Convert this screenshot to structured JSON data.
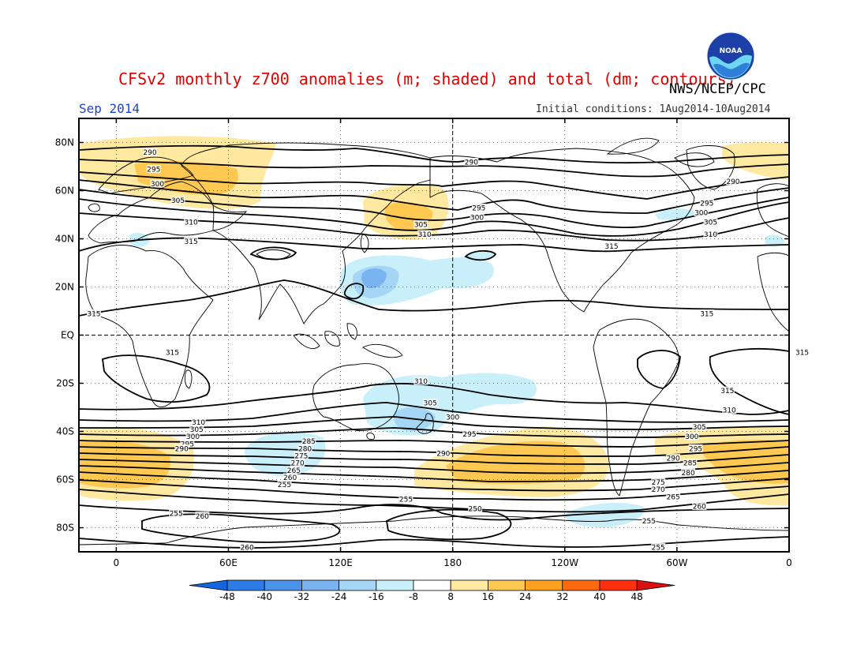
{
  "title": "CFSv2 monthly z700 anomalies (m; shaded) and total (dm; contours)",
  "agency": "NWS/NCEP/CPC",
  "logo_text": "NOAA",
  "month": "Sep 2014",
  "initial_conditions": "Initial conditions: 1Aug2014-10Aug2014",
  "lat_labels": [
    "80N",
    "60N",
    "40N",
    "20N",
    "EQ",
    "20S",
    "40S",
    "60S",
    "80S"
  ],
  "lat_values": [
    80,
    60,
    40,
    20,
    0,
    -20,
    -40,
    -60,
    -80
  ],
  "lon_labels": [
    "0",
    "60E",
    "120E",
    "180",
    "120W",
    "60W",
    "0"
  ],
  "lon_values": [
    0,
    60,
    120,
    180,
    240,
    300,
    360
  ],
  "colorbar": {
    "ticks": [
      "-48",
      "-40",
      "-32",
      "-24",
      "-16",
      "-8",
      "8",
      "16",
      "24",
      "32",
      "40",
      "48"
    ],
    "colors": [
      "#1565e0",
      "#2b7ce6",
      "#4b94ea",
      "#79b4f0",
      "#a6d6f6",
      "#c9f0fa",
      "#ffffff",
      "#ffe8a0",
      "#ffc850",
      "#ffa020",
      "#ff6a10",
      "#ff3010",
      "#d81010"
    ]
  },
  "colors": {
    "title": "#e00000",
    "month": "#1a44d6",
    "pos_light": "#ffe8a0",
    "pos_mid": "#ffc850",
    "neg_light": "#c9f0fa",
    "neg_mid": "#a6d6f6",
    "neg_strong": "#79b4f0"
  },
  "contour_labels": [
    {
      "text": "290",
      "lon": 18,
      "lat": 76
    },
    {
      "text": "295",
      "lon": 20,
      "lat": 69
    },
    {
      "text": "300",
      "lon": 22,
      "lat": 63
    },
    {
      "text": "305",
      "lon": 33,
      "lat": 56
    },
    {
      "text": "310",
      "lon": 40,
      "lat": 47
    },
    {
      "text": "315",
      "lon": 40,
      "lat": 39
    },
    {
      "text": "290",
      "lon": 190,
      "lat": 72
    },
    {
      "text": "295",
      "lon": 194,
      "lat": 53
    },
    {
      "text": "300",
      "lon": 193,
      "lat": 49
    },
    {
      "text": "305",
      "lon": 163,
      "lat": 46
    },
    {
      "text": "310",
      "lon": 165,
      "lat": 42
    },
    {
      "text": "290",
      "lon": 330,
      "lat": 64
    },
    {
      "text": "295",
      "lon": 316,
      "lat": 55
    },
    {
      "text": "300",
      "lon": 313,
      "lat": 51
    },
    {
      "text": "305",
      "lon": 318,
      "lat": 47
    },
    {
      "text": "310",
      "lon": 318,
      "lat": 42
    },
    {
      "text": "315",
      "lon": 265,
      "lat": 37
    },
    {
      "text": "315",
      "lon": -12,
      "lat": 9
    },
    {
      "text": "315",
      "lon": 316,
      "lat": 9
    },
    {
      "text": "315",
      "lon": 30,
      "lat": -7
    },
    {
      "text": "315",
      "lon": 367,
      "lat": -7
    },
    {
      "text": "315",
      "lon": 327,
      "lat": -23
    },
    {
      "text": "310",
      "lon": 163,
      "lat": -19
    },
    {
      "text": "310",
      "lon": 328,
      "lat": -31
    },
    {
      "text": "305",
      "lon": 168,
      "lat": -28
    },
    {
      "text": "300",
      "lon": 180,
      "lat": -34
    },
    {
      "text": "295",
      "lon": 189,
      "lat": -41
    },
    {
      "text": "310",
      "lon": 44,
      "lat": -36
    },
    {
      "text": "305",
      "lon": 43,
      "lat": -39
    },
    {
      "text": "300",
      "lon": 41,
      "lat": -42
    },
    {
      "text": "295",
      "lon": 38,
      "lat": -45
    },
    {
      "text": "290",
      "lon": 35,
      "lat": -47
    },
    {
      "text": "290",
      "lon": 175,
      "lat": -49
    },
    {
      "text": "305",
      "lon": 312,
      "lat": -38
    },
    {
      "text": "300",
      "lon": 308,
      "lat": -42
    },
    {
      "text": "295",
      "lon": 310,
      "lat": -47
    },
    {
      "text": "290",
      "lon": 298,
      "lat": -51
    },
    {
      "text": "285",
      "lon": 307,
      "lat": -53
    },
    {
      "text": "280",
      "lon": 306,
      "lat": -57
    },
    {
      "text": "275",
      "lon": 290,
      "lat": -61
    },
    {
      "text": "270",
      "lon": 290,
      "lat": -64
    },
    {
      "text": "265",
      "lon": 298,
      "lat": -67
    },
    {
      "text": "260",
      "lon": 312,
      "lat": -71
    },
    {
      "text": "255",
      "lon": 285,
      "lat": -77
    },
    {
      "text": "255",
      "lon": 290,
      "lat": -88
    },
    {
      "text": "285",
      "lon": 103,
      "lat": -44
    },
    {
      "text": "280",
      "lon": 101,
      "lat": -47
    },
    {
      "text": "275",
      "lon": 99,
      "lat": -50
    },
    {
      "text": "270",
      "lon": 97,
      "lat": -53
    },
    {
      "text": "265",
      "lon": 95,
      "lat": -56
    },
    {
      "text": "260",
      "lon": 93,
      "lat": -59
    },
    {
      "text": "255",
      "lon": 90,
      "lat": -62
    },
    {
      "text": "255",
      "lon": 155,
      "lat": -68
    },
    {
      "text": "250",
      "lon": 192,
      "lat": -72
    },
    {
      "text": "255",
      "lon": 32,
      "lat": -74
    },
    {
      "text": "260",
      "lon": 46,
      "lat": -75
    },
    {
      "text": "260",
      "lon": 70,
      "lat": -88
    }
  ]
}
